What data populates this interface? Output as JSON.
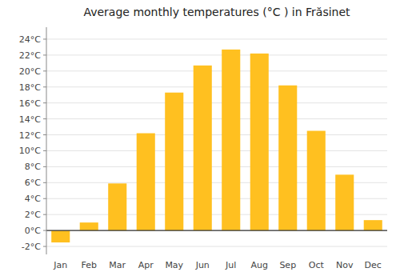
{
  "chart_data": {
    "type": "bar",
    "title": "Average monthly temperatures (°C ) in Frăsinet",
    "categories": [
      "Jan",
      "Feb",
      "Mar",
      "Apr",
      "May",
      "Jun",
      "Jul",
      "Aug",
      "Sep",
      "Oct",
      "Nov",
      "Dec"
    ],
    "values": [
      -1.5,
      1.0,
      5.9,
      12.2,
      17.3,
      20.7,
      22.7,
      22.2,
      18.2,
      12.5,
      7.0,
      1.3
    ],
    "color": "#FFC020",
    "ylim": [
      -3,
      25.5
    ],
    "yticks": [
      {
        "value": -2,
        "label": "-2°C"
      },
      {
        "value": 0,
        "label": "0°C"
      },
      {
        "value": 2,
        "label": "2°C"
      },
      {
        "value": 4,
        "label": "4°C"
      },
      {
        "value": 6,
        "label": "6°C"
      },
      {
        "value": 8,
        "label": "8°C"
      },
      {
        "value": 10,
        "label": "10°C"
      },
      {
        "value": 12,
        "label": "12°C"
      },
      {
        "value": 14,
        "label": "14°C"
      },
      {
        "value": 16,
        "label": "16°C"
      },
      {
        "value": 18,
        "label": "18°C"
      },
      {
        "value": 20,
        "label": "20°C"
      },
      {
        "value": 22,
        "label": "22°C"
      },
      {
        "value": 24,
        "label": "24°C"
      }
    ],
    "grid": true
  }
}
